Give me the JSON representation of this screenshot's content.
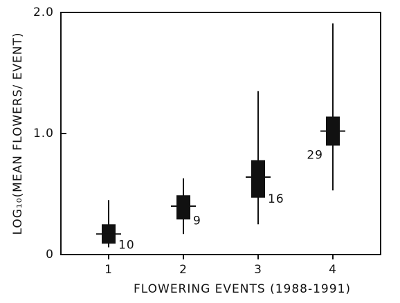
{
  "chart_data": {
    "type": "box",
    "ylabel": "LOG₁₀(MEAN FLOWERS/ EVENT)",
    "xlabel": "FLOWERING EVENTS (1988-1991)",
    "categories": [
      "1",
      "2",
      "3",
      "4"
    ],
    "mean": [
      0.17,
      0.4,
      0.64,
      1.02
    ],
    "box_low": [
      0.09,
      0.29,
      0.47,
      0.9
    ],
    "box_high": [
      0.25,
      0.49,
      0.78,
      1.14
    ],
    "whisker_low": [
      0.06,
      0.17,
      0.25,
      0.53
    ],
    "whisker_high": [
      0.45,
      0.63,
      1.35,
      1.91
    ],
    "n": [
      10,
      9,
      16,
      29
    ],
    "color": "#111111",
    "ylim": [
      0,
      2
    ],
    "yticks": [
      0,
      {
        "value": 1,
        "label": "1.0"
      },
      {
        "value": 2,
        "label": "2.0"
      }
    ]
  }
}
